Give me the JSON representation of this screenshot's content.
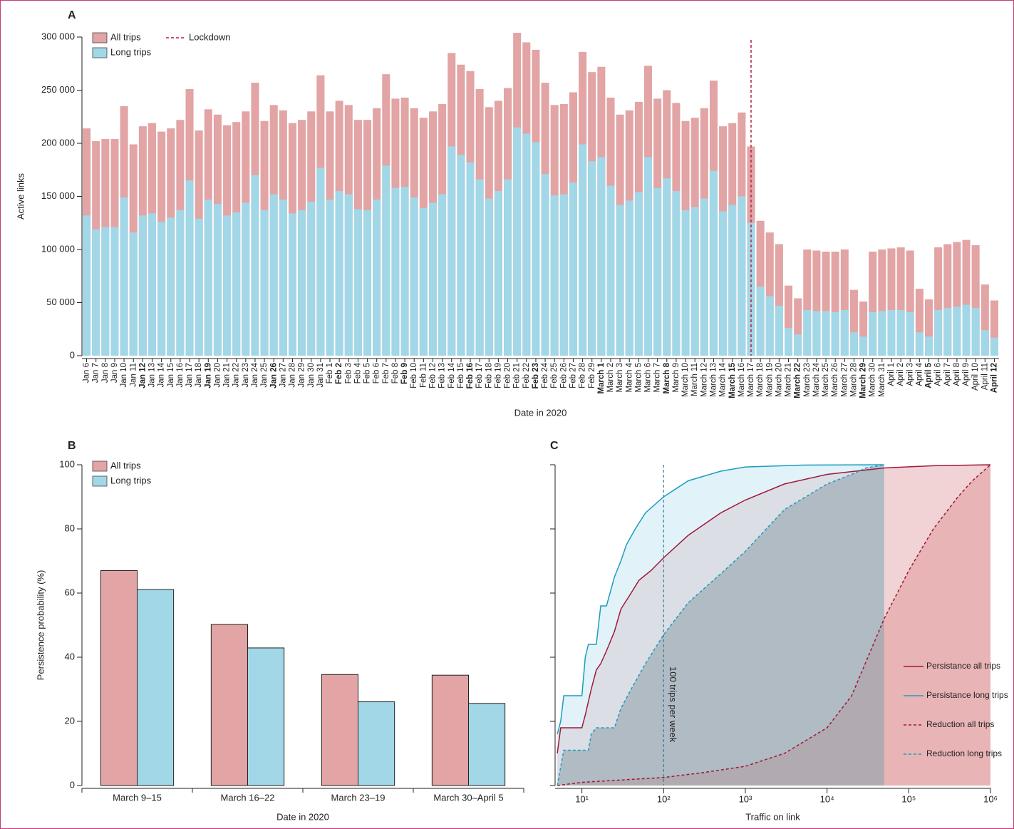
{
  "chart_data": [
    {
      "panel": "A",
      "type": "bar",
      "mode": "overlay",
      "categories": [
        "Jan 6",
        "Jan 7",
        "Jan 8",
        "Jan 9",
        "Jan 10",
        "Jan 11",
        "Jan 12",
        "Jan 13",
        "Jan 14",
        "Jan 15",
        "Jan 16",
        "Jan 17",
        "Jan 18",
        "Jan 19",
        "Jan 20",
        "Jan 21",
        "Jan 22",
        "Jan 23",
        "Jan 24",
        "Jan 25",
        "Jan 26",
        "Jan 27",
        "Jan 28",
        "Jan 29",
        "Jan 30",
        "Jan 31",
        "Feb 1",
        "Feb 2",
        "Feb 3",
        "Feb 4",
        "Feb 5",
        "Feb 6",
        "Feb 7",
        "Feb 8",
        "Feb 9",
        "Feb 10",
        "Feb 11",
        "Feb 12",
        "Feb 13",
        "Feb 14",
        "Feb 15",
        "Feb 16",
        "Feb 17",
        "Feb 18",
        "Feb 19",
        "Feb 20",
        "Feb 21",
        "Feb 22",
        "Feb 23",
        "Feb 24",
        "Feb 25",
        "Feb 26",
        "Feb 27",
        "Feb 28",
        "Feb 29",
        "March 1",
        "March 2",
        "March 3",
        "March 4",
        "March 5",
        "March 6",
        "March 7",
        "March 8",
        "March 9",
        "March 10",
        "March 11",
        "March 12",
        "March 13",
        "March 14",
        "March 15",
        "March 16",
        "March 17",
        "March 18",
        "March 19",
        "March 20",
        "March 21",
        "March 22",
        "March 23",
        "March 24",
        "March 25",
        "March 26",
        "March 27",
        "March 28",
        "March 29",
        "March 30",
        "March 31",
        "April 1",
        "April 2",
        "April 3",
        "April 4",
        "April 5",
        "April 6",
        "April 7",
        "April 8",
        "April 9",
        "April 10",
        "April 11",
        "April 12"
      ],
      "series": [
        {
          "name": "All trips",
          "color": "#e2a4a4",
          "values": [
            214000,
            202000,
            204000,
            204000,
            235000,
            199000,
            216000,
            219000,
            211000,
            214000,
            222000,
            251000,
            212000,
            232000,
            227000,
            217000,
            220000,
            230000,
            257000,
            221000,
            236000,
            231000,
            219000,
            222000,
            230000,
            264000,
            230000,
            240000,
            236000,
            222000,
            222000,
            233000,
            265000,
            242000,
            243000,
            233000,
            224000,
            230000,
            237000,
            285000,
            274000,
            268000,
            251000,
            234000,
            240000,
            252000,
            304000,
            295000,
            288000,
            257000,
            236000,
            237000,
            248000,
            286000,
            267000,
            272000,
            243000,
            227000,
            231000,
            239000,
            273000,
            242000,
            250000,
            238000,
            221000,
            224000,
            233000,
            259000,
            216000,
            219000,
            229000,
            197000,
            127000,
            116000,
            105000,
            66000,
            54000,
            100000,
            99000,
            98000,
            98000,
            100000,
            62000,
            51000,
            98000,
            100000,
            101000,
            102000,
            99000,
            63000,
            53000,
            102000,
            105000,
            107000,
            109000,
            104000,
            67000,
            52000
          ]
        },
        {
          "name": "Long trips",
          "color": "#a2d7e7",
          "values": [
            132000,
            119000,
            121000,
            121000,
            149000,
            116000,
            132000,
            134000,
            126000,
            130000,
            137000,
            165000,
            129000,
            147000,
            143000,
            132000,
            135000,
            144000,
            170000,
            137000,
            152000,
            147000,
            134000,
            137000,
            145000,
            177000,
            147000,
            155000,
            152000,
            138000,
            137000,
            147000,
            179000,
            158000,
            159000,
            149000,
            139000,
            144000,
            152000,
            197000,
            189000,
            182000,
            166000,
            148000,
            155000,
            166000,
            215000,
            209000,
            201000,
            171000,
            151000,
            152000,
            163000,
            199000,
            183000,
            187000,
            160000,
            142000,
            146000,
            154000,
            187000,
            158000,
            167000,
            155000,
            137000,
            140000,
            148000,
            174000,
            136000,
            142000,
            150000,
            125000,
            65000,
            56000,
            47000,
            26000,
            20000,
            43000,
            42000,
            42000,
            41000,
            43000,
            22000,
            18000,
            41000,
            42000,
            43000,
            43000,
            41000,
            22000,
            18000,
            43000,
            45000,
            46000,
            48000,
            45000,
            24000,
            17000
          ]
        }
      ],
      "ylim": [
        0,
        300000
      ],
      "yticks": [
        0,
        {
          "value": 50000,
          "label": "50 000"
        },
        {
          "value": 100000,
          "label": "100 000"
        },
        {
          "value": 150000,
          "label": "150 000"
        },
        {
          "value": 200000,
          "label": "200 000"
        },
        {
          "value": 250000,
          "label": "250 000"
        },
        {
          "value": 300000,
          "label": "300 000"
        }
      ],
      "y_label": "Active links",
      "x_label": "Date in 2020",
      "lockdown": {
        "name": "Lockdown",
        "at": "March 17",
        "color": "#b5203f"
      }
    },
    {
      "panel": "B",
      "type": "bar",
      "mode": "grouped",
      "categories": [
        "March 9–15",
        "March 16–22",
        "March 23–19",
        "March 30–April 5"
      ],
      "series": [
        {
          "name": "All trips",
          "color": "#e2a4a4",
          "values": [
            67,
            50.2,
            34.6,
            34.4
          ]
        },
        {
          "name": "Long trips",
          "color": "#a2d7e7",
          "values": [
            61.1,
            42.9,
            26.1,
            25.6
          ]
        }
      ],
      "ylim": [
        0,
        100
      ],
      "yticks": [
        0,
        20,
        40,
        60,
        80,
        100
      ],
      "y_label": "Persistence probability (%)",
      "x_label": "Date in 2020"
    },
    {
      "panel": "C",
      "type": "line",
      "xscale": "log",
      "xlim": [
        4.7,
        1000000
      ],
      "xticks": [
        {
          "value": 10,
          "label": "10¹"
        },
        {
          "value": 100,
          "label": "10²"
        },
        {
          "value": 1000,
          "label": "10³"
        },
        {
          "value": 10000,
          "label": "10⁴"
        },
        {
          "value": 100000,
          "label": "10⁵"
        },
        {
          "value": 1000000,
          "label": "10⁶"
        }
      ],
      "ylim": [
        0,
        100
      ],
      "yticks": [
        0,
        20,
        40,
        60,
        80,
        100
      ],
      "x_label": "Traffic on link",
      "annotation": {
        "text": "100 trips per week",
        "x": 100
      },
      "series": [
        {
          "name": "Persistance all trips",
          "color": "#a3173a",
          "fill": "#e6aeb4",
          "dashed": false,
          "x": [
            5,
            5.5,
            10,
            11,
            13,
            15,
            17,
            20,
            25,
            30,
            40,
            50,
            70,
            100,
            200,
            500,
            1000,
            3000,
            10000,
            50000,
            200000,
            1000000
          ],
          "values": [
            10,
            18,
            18,
            22,
            30,
            36,
            38,
            42,
            48,
            55,
            60,
            64,
            67,
            71,
            78,
            85,
            89,
            94,
            97,
            99,
            99.7,
            100
          ]
        },
        {
          "name": "Persistance long trips",
          "color": "#1b9dbf",
          "fill": "#c8e7f2",
          "dashed": false,
          "x": [
            5,
            5.5,
            6,
            10,
            11,
            12,
            15,
            17,
            20,
            25,
            30,
            35,
            45,
            60,
            100,
            200,
            500,
            1000,
            5000,
            50000
          ],
          "values": [
            16,
            20,
            28,
            28,
            40,
            44,
            44,
            56,
            56,
            65,
            70,
            75,
            80,
            85,
            90,
            95,
            98,
            99.3,
            99.9,
            100
          ]
        },
        {
          "name": "Reduction all trips",
          "color": "#a3173a",
          "fill": "#e09a9c",
          "dashed": true,
          "x": [
            5,
            10,
            100,
            300,
            1000,
            3000,
            10000,
            20000,
            50000,
            100000,
            200000,
            400000,
            600000,
            1000000
          ],
          "values": [
            0,
            1,
            2.5,
            4,
            6,
            10,
            18,
            28,
            52,
            67,
            80,
            90,
            95,
            100
          ]
        },
        {
          "name": "Reduction long trips",
          "color": "#1b9dbf",
          "fill": "#8c9ea8",
          "dashed": true,
          "x": [
            5,
            6,
            12,
            13,
            15,
            25,
            30,
            40,
            60,
            100,
            200,
            500,
            1000,
            3000,
            10000,
            20000,
            30000,
            50000
          ],
          "values": [
            0,
            11,
            11,
            16,
            18,
            18,
            24,
            30,
            38,
            47,
            57,
            66,
            73,
            86,
            94,
            97,
            99,
            100
          ]
        }
      ]
    }
  ]
}
